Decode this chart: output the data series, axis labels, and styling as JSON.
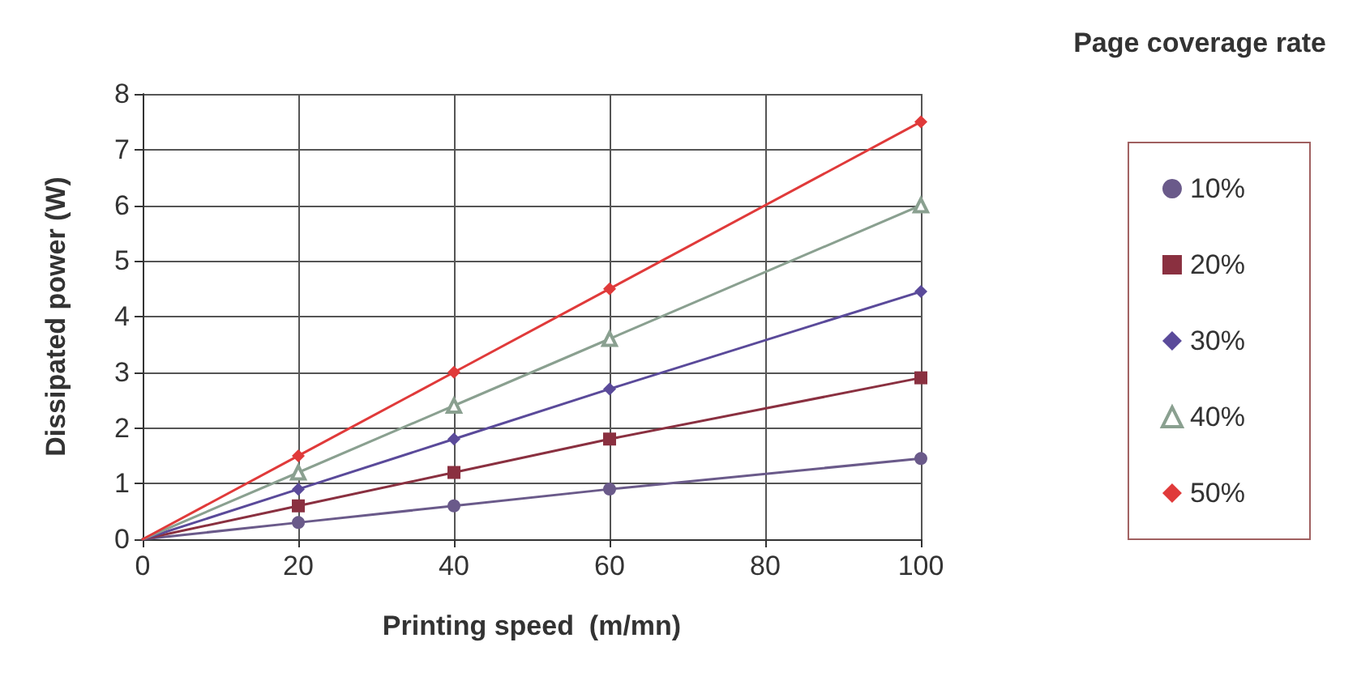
{
  "chart_data": {
    "type": "line",
    "xlabel": "Printing speed  (m/mn)",
    "ylabel": "Dissipated power (W)",
    "legend_title": "Page coverage rate",
    "x": [
      0,
      20,
      40,
      60,
      100
    ],
    "series": [
      {
        "name": "10%",
        "color": "#6a5a8a",
        "marker": "circle",
        "values": [
          0,
          0.3,
          0.6,
          0.9,
          1.45
        ]
      },
      {
        "name": "20%",
        "color": "#8a3040",
        "marker": "square",
        "values": [
          0,
          0.6,
          1.2,
          1.8,
          2.9
        ]
      },
      {
        "name": "30%",
        "color": "#5a4a9a",
        "marker": "diamond",
        "values": [
          0,
          0.9,
          1.8,
          2.7,
          4.45
        ]
      },
      {
        "name": "40%",
        "color": "#8aa090",
        "marker": "triangle",
        "values": [
          0,
          1.2,
          2.4,
          3.6,
          6.0
        ]
      },
      {
        "name": "50%",
        "color": "#e03a3a",
        "marker": "diamond",
        "values": [
          0,
          1.5,
          3.0,
          4.5,
          7.5
        ]
      }
    ],
    "xlim": [
      0,
      100
    ],
    "xticks": [
      0,
      20,
      40,
      60,
      80,
      100
    ],
    "ylim": [
      0,
      8
    ],
    "yticks": [
      0,
      1,
      2,
      3,
      4,
      5,
      6,
      7,
      8
    ],
    "grid": true,
    "legend": "right",
    "line_style": "solid"
  }
}
